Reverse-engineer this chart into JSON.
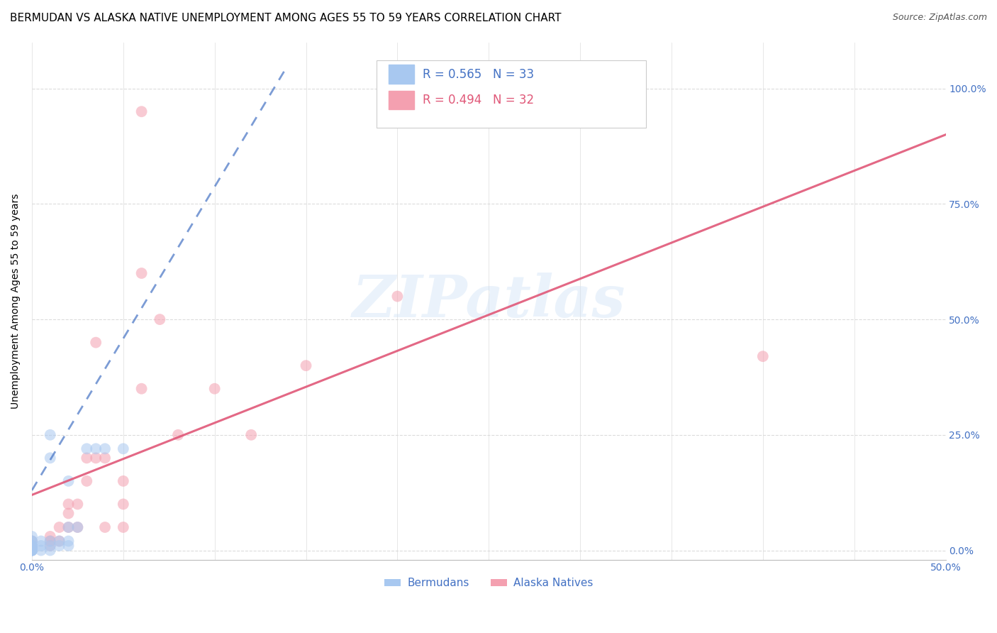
{
  "title": "BERMUDAN VS ALASKA NATIVE UNEMPLOYMENT AMONG AGES 55 TO 59 YEARS CORRELATION CHART",
  "source": "Source: ZipAtlas.com",
  "ylabel": "Unemployment Among Ages 55 to 59 years",
  "watermark": "ZIPatlas",
  "xlim": [
    0.0,
    0.5
  ],
  "ylim": [
    -0.02,
    1.1
  ],
  "yticks": [
    0.0,
    0.25,
    0.5,
    0.75,
    1.0
  ],
  "ytick_labels": [
    "0.0%",
    "25.0%",
    "50.0%",
    "75.0%",
    "100.0%"
  ],
  "xticks": [
    0.0,
    0.05,
    0.1,
    0.15,
    0.2,
    0.25,
    0.3,
    0.35,
    0.4,
    0.45,
    0.5
  ],
  "xtick_labels": [
    "0.0%",
    "",
    "",
    "",
    "",
    "",
    "",
    "",
    "",
    "",
    "50.0%"
  ],
  "bermudans_R": 0.565,
  "bermudans_N": 33,
  "alaska_R": 0.494,
  "alaska_N": 32,
  "bermudans_color": "#a8c8f0",
  "bermudans_line_color": "#4472c4",
  "alaska_color": "#f4a0b0",
  "alaska_line_color": "#e05878",
  "bermudans_x": [
    0.0,
    0.0,
    0.0,
    0.0,
    0.0,
    0.0,
    0.0,
    0.0,
    0.0,
    0.0,
    0.0,
    0.0,
    0.0,
    0.0,
    0.005,
    0.005,
    0.005,
    0.01,
    0.01,
    0.01,
    0.015,
    0.015,
    0.02,
    0.02,
    0.02,
    0.025,
    0.03,
    0.035,
    0.04,
    0.05,
    0.02,
    0.01,
    0.01
  ],
  "bermudans_y": [
    0.0,
    0.0,
    0.0,
    0.0,
    0.0,
    0.0,
    0.005,
    0.005,
    0.01,
    0.01,
    0.01,
    0.02,
    0.02,
    0.03,
    0.0,
    0.01,
    0.02,
    0.0,
    0.01,
    0.02,
    0.01,
    0.02,
    0.01,
    0.02,
    0.05,
    0.05,
    0.22,
    0.22,
    0.22,
    0.22,
    0.15,
    0.2,
    0.25
  ],
  "alaska_x": [
    0.0,
    0.0,
    0.0,
    0.01,
    0.01,
    0.01,
    0.015,
    0.015,
    0.02,
    0.02,
    0.02,
    0.025,
    0.025,
    0.03,
    0.03,
    0.035,
    0.035,
    0.04,
    0.04,
    0.05,
    0.05,
    0.05,
    0.06,
    0.06,
    0.07,
    0.08,
    0.1,
    0.12,
    0.15,
    0.2,
    0.4,
    0.06
  ],
  "alaska_y": [
    0.0,
    0.01,
    0.02,
    0.01,
    0.02,
    0.03,
    0.02,
    0.05,
    0.05,
    0.08,
    0.1,
    0.05,
    0.1,
    0.15,
    0.2,
    0.2,
    0.45,
    0.05,
    0.2,
    0.05,
    0.1,
    0.15,
    0.35,
    0.6,
    0.5,
    0.25,
    0.35,
    0.25,
    0.4,
    0.55,
    0.42,
    0.95
  ],
  "marker_size": 130,
  "marker_alpha": 0.55,
  "grid_color": "#d8d8d8",
  "bg_color": "#ffffff",
  "title_fontsize": 11,
  "axis_label_fontsize": 10,
  "tick_fontsize": 10,
  "legend_fontsize": 11,
  "blue_line_x0": 0.0,
  "blue_line_y0": 0.13,
  "blue_line_x1": 0.14,
  "blue_line_y1": 1.05,
  "pink_line_x0": 0.0,
  "pink_line_y0": 0.12,
  "pink_line_x1": 0.5,
  "pink_line_y1": 0.9
}
